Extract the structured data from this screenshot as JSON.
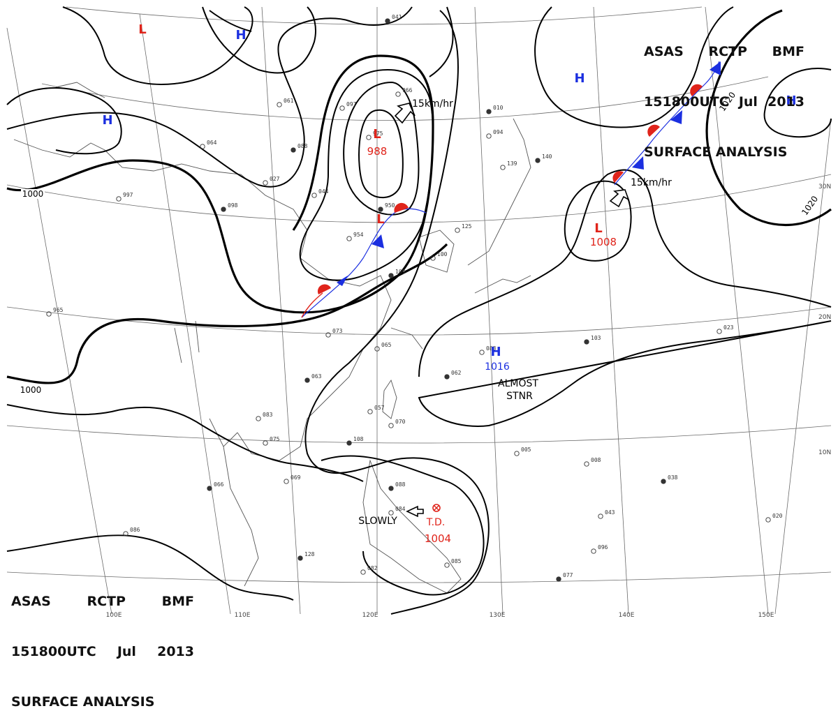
{
  "header": {
    "line1": [
      "ASAS",
      "RCTP",
      "BMF"
    ],
    "line2": [
      "151800UTC",
      "Jul",
      "2013"
    ],
    "line3": "SURFACE ANALYSIS"
  },
  "pressure_centers": [
    {
      "type": "L",
      "value": "988"
    },
    {
      "type": "L",
      "value": ""
    },
    {
      "type": "L",
      "value": "1008"
    },
    {
      "type": "L",
      "value": ""
    },
    {
      "type": "H",
      "value": ""
    },
    {
      "type": "H",
      "value": ""
    },
    {
      "type": "H",
      "value": ""
    },
    {
      "type": "H",
      "value": ""
    },
    {
      "type": "H",
      "value": "1016"
    }
  ],
  "isobar_labels": [
    "1000",
    "1000",
    "1020",
    "1020"
  ],
  "storm": {
    "type": "T.D.",
    "pressure": "1004",
    "movement": "SLOWLY"
  },
  "motions": [
    "15km/hr",
    "15km/hr"
  ],
  "annotations": [
    "ALMOST",
    "STNR"
  ],
  "longitudes": [
    "100E",
    "110E",
    "120E",
    "130E",
    "140E",
    "150E"
  ],
  "latitudes": [
    "30N",
    "20N",
    "10N"
  ],
  "station_samples": [
    "041",
    "966",
    "975",
    "950",
    "954",
    "064",
    "088",
    "027",
    "044",
    "098",
    "097",
    "061",
    "010",
    "094",
    "139",
    "140",
    "125",
    "100",
    "109",
    "073",
    "065",
    "063",
    "057",
    "070",
    "108",
    "083",
    "075",
    "066",
    "069",
    "086",
    "128",
    "082",
    "084",
    "088",
    "085",
    "083",
    "062",
    "005",
    "008",
    "038",
    "043",
    "096",
    "077",
    "020",
    "023",
    "103",
    "997",
    "965"
  ],
  "colors": {
    "low": "#e0241b",
    "high": "#1b2fe0",
    "front_warm": "#e0241b",
    "front_cold": "#1b2fe0",
    "isobar": "#000000"
  },
  "icons": [
    "high-pressure-marker",
    "low-pressure-marker",
    "motion-arrow",
    "typhoon-symbol"
  ]
}
